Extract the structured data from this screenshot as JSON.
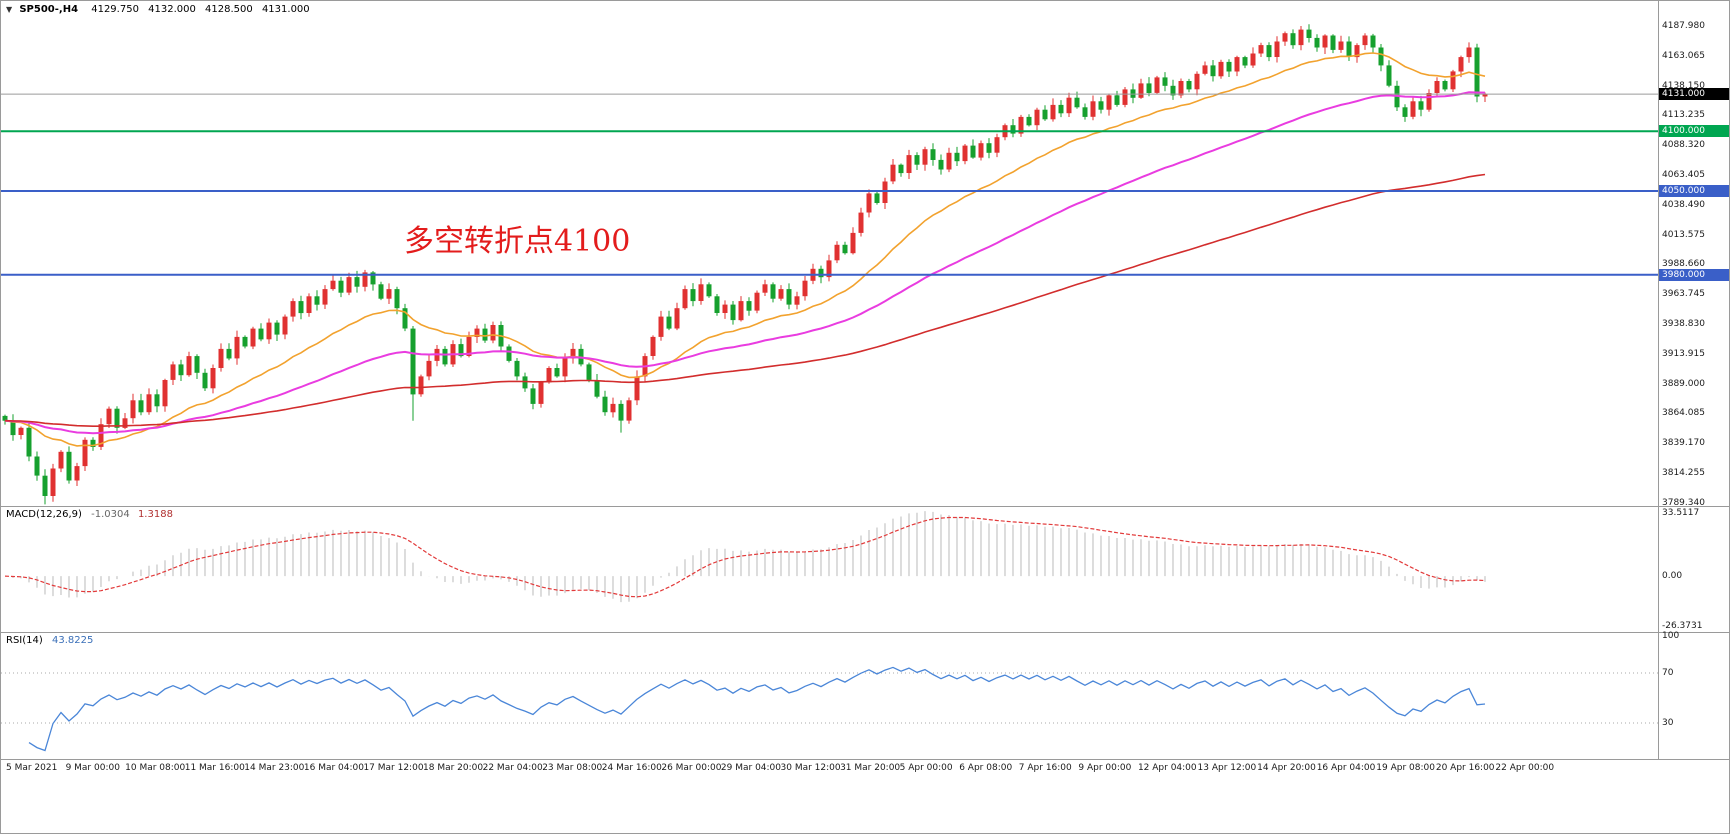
{
  "header": {
    "dropdown_icon": "▼"
  },
  "chart_data": [
    {
      "name": "price-chart",
      "type": "candlestick",
      "symbol": "SP500-,H4",
      "ohlc_readout": {
        "open": "4129.750",
        "high": "4132.000",
        "low": "4128.500",
        "close": "4131.000"
      },
      "annotation": {
        "text": "多空转折点4100",
        "color": "#e31c1c"
      },
      "ylim": [
        3789.34,
        4196.0
      ],
      "x_range": [
        "5 Mar 2021",
        "22 Apr 2021"
      ],
      "y_axis_labels": [
        "4187.980",
        "4163.065",
        "4138.150",
        "4113.235",
        "4088.320",
        "4063.405",
        "4038.490",
        "4013.575",
        "3988.660",
        "3963.745",
        "3938.830",
        "3913.915",
        "3889.000",
        "3864.085",
        "3839.170",
        "3814.255",
        "3789.340"
      ],
      "price_markers": [
        {
          "text": "4131.000",
          "price": 4131.0,
          "bg": "#000000",
          "kind": "current-price"
        },
        {
          "text": "4100.000",
          "price": 4100.0,
          "bg": "#00a651",
          "kind": "level"
        },
        {
          "text": "4050.000",
          "price": 4050.0,
          "bg": "#3a5fc8",
          "kind": "level"
        },
        {
          "text": "3980.000",
          "price": 3980.0,
          "bg": "#3a5fc8",
          "kind": "level"
        }
      ],
      "h_lines": [
        {
          "price": 4131.0,
          "color": "#9a9a9a",
          "width": 1
        },
        {
          "price": 4100.0,
          "color": "#00a651",
          "width": 2
        },
        {
          "price": 4050.0,
          "color": "#3a5fc8",
          "width": 2
        },
        {
          "price": 3980.0,
          "color": "#3a5fc8",
          "width": 2
        }
      ],
      "candles": {
        "first_open": 3862,
        "up_color": "#e03131",
        "down_color": "#16a02e",
        "closes": [
          3858,
          3846,
          3852,
          3828,
          3812,
          3795,
          3818,
          3832,
          3808,
          3820,
          3842,
          3836,
          3855,
          3868,
          3852,
          3860,
          3875,
          3865,
          3880,
          3870,
          3892,
          3905,
          3896,
          3912,
          3898,
          3885,
          3902,
          3918,
          3910,
          3928,
          3920,
          3935,
          3926,
          3940,
          3930,
          3945,
          3958,
          3948,
          3962,
          3955,
          3968,
          3975,
          3965,
          3978,
          3970,
          3982,
          3972,
          3960,
          3968,
          3952,
          3935,
          3880,
          3895,
          3908,
          3918,
          3905,
          3922,
          3912,
          3928,
          3935,
          3925,
          3938,
          3920,
          3908,
          3895,
          3885,
          3872,
          3890,
          3902,
          3895,
          3910,
          3918,
          3905,
          3892,
          3878,
          3865,
          3872,
          3858,
          3875,
          3895,
          3912,
          3928,
          3945,
          3935,
          3952,
          3968,
          3958,
          3972,
          3962,
          3948,
          3955,
          3942,
          3958,
          3950,
          3965,
          3972,
          3960,
          3968,
          3955,
          3962,
          3975,
          3985,
          3978,
          3992,
          4005,
          3998,
          4015,
          4032,
          4048,
          4040,
          4058,
          4072,
          4065,
          4080,
          4072,
          4085,
          4076,
          4068,
          4082,
          4075,
          4088,
          4078,
          4090,
          4082,
          4095,
          4105,
          4098,
          4112,
          4105,
          4118,
          4110,
          4122,
          4115,
          4128,
          4120,
          4112,
          4125,
          4118,
          4130,
          4122,
          4135,
          4128,
          4140,
          4132,
          4145,
          4138,
          4130,
          4142,
          4135,
          4148,
          4155,
          4146,
          4158,
          4150,
          4162,
          4155,
          4165,
          4172,
          4162,
          4175,
          4182,
          4172,
          4185,
          4178,
          4170,
          4180,
          4168,
          4175,
          4162,
          4172,
          4180,
          4170,
          4155,
          4138,
          4120,
          4112,
          4125,
          4118,
          4132,
          4142,
          4135,
          4150,
          4162,
          4170,
          4129,
          4131
        ],
        "wick_overrides": {
          "5": {
            "low": 3788
          },
          "51": {
            "low": 3858
          },
          "77": {
            "low": 3848
          },
          "162": {
            "high": 4188
          }
        }
      },
      "moving_averages": [
        {
          "period": 21,
          "color": "#f2a22e"
        },
        {
          "period": 55,
          "color": "#e93ce0"
        },
        {
          "period": 140,
          "color": "#d22d2d"
        }
      ]
    },
    {
      "name": "macd-panel",
      "type": "bar",
      "label": "MACD(12,26,9)",
      "params": [
        12,
        26,
        9
      ],
      "values_readout": [
        "-1.0304",
        "1.3188"
      ],
      "y_axis_labels": [
        "33.5117",
        "0.00",
        "-26.3731"
      ],
      "ylim": [
        -29.5,
        37.2
      ],
      "histogram_color": "#c6c6c6",
      "signal_color": "#e23a3a"
    },
    {
      "name": "rsi-panel",
      "type": "line",
      "label": "RSI(14)",
      "period": 14,
      "value_readout": "43.8225",
      "y_axis_labels": [
        "100",
        "70",
        "30"
      ],
      "levels": [
        70,
        30
      ],
      "ylim": [
        0,
        100
      ],
      "line_color": "#4a86d8"
    }
  ],
  "time_axis": {
    "labels": [
      "5 Mar 2021",
      "9 Mar 00:00",
      "10 Mar 08:00",
      "11 Mar 16:00",
      "14 Mar 23:00",
      "16 Mar 04:00",
      "17 Mar 12:00",
      "18 Mar 20:00",
      "22 Mar 04:00",
      "23 Mar 08:00",
      "24 Mar 16:00",
      "26 Mar 00:00",
      "29 Mar 04:00",
      "30 Mar 12:00",
      "31 Mar 20:00",
      "5 Apr 00:00",
      "6 Apr 08:00",
      "7 Apr 16:00",
      "9 Apr 00:00",
      "12 Apr 04:00",
      "13 Apr 12:00",
      "14 Apr 20:00",
      "16 Apr 04:00",
      "19 Apr 08:00",
      "20 Apr 16:00",
      "22 Apr 00:00"
    ]
  }
}
